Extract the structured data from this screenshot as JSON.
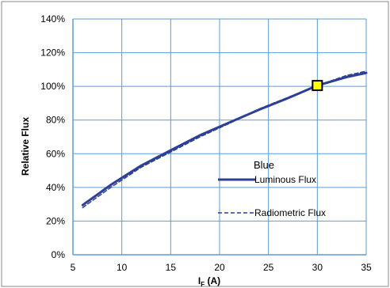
{
  "chart_data": {
    "type": "line",
    "title": "",
    "xlabel": "I",
    "xlabel_sub": "F",
    "xlabel_unit": " (A)",
    "ylabel": "Relative Flux",
    "xlim": [
      5,
      35
    ],
    "ylim": [
      0,
      140
    ],
    "xticks": [
      5,
      10,
      15,
      20,
      25,
      30,
      35
    ],
    "yticks": [
      0,
      20,
      40,
      60,
      80,
      100,
      120,
      140
    ],
    "ytick_suffix": "%",
    "grid": true,
    "legend_title": "Blue",
    "legend_position": "center-right",
    "series": [
      {
        "name": "Luminous Flux",
        "style": "solid",
        "color": "#2e3f96",
        "x": [
          6,
          9,
          12,
          15,
          18,
          21,
          24,
          27,
          30,
          33,
          35
        ],
        "y": [
          29.5,
          42,
          53,
          62,
          71,
          78.5,
          86,
          93,
          100.5,
          105.5,
          108
        ]
      },
      {
        "name": "Radiometric Flux",
        "style": "dashed",
        "color": "#2e3f96",
        "x": [
          6,
          9,
          12,
          15,
          18,
          21,
          24,
          27,
          30,
          33,
          35
        ],
        "y": [
          28,
          40.5,
          52,
          61,
          70,
          78,
          86.5,
          93.5,
          100.5,
          106.5,
          109
        ]
      }
    ],
    "marker": {
      "x": 30,
      "y": 100.5,
      "fill": "#ffff00",
      "stroke": "#000000"
    }
  }
}
